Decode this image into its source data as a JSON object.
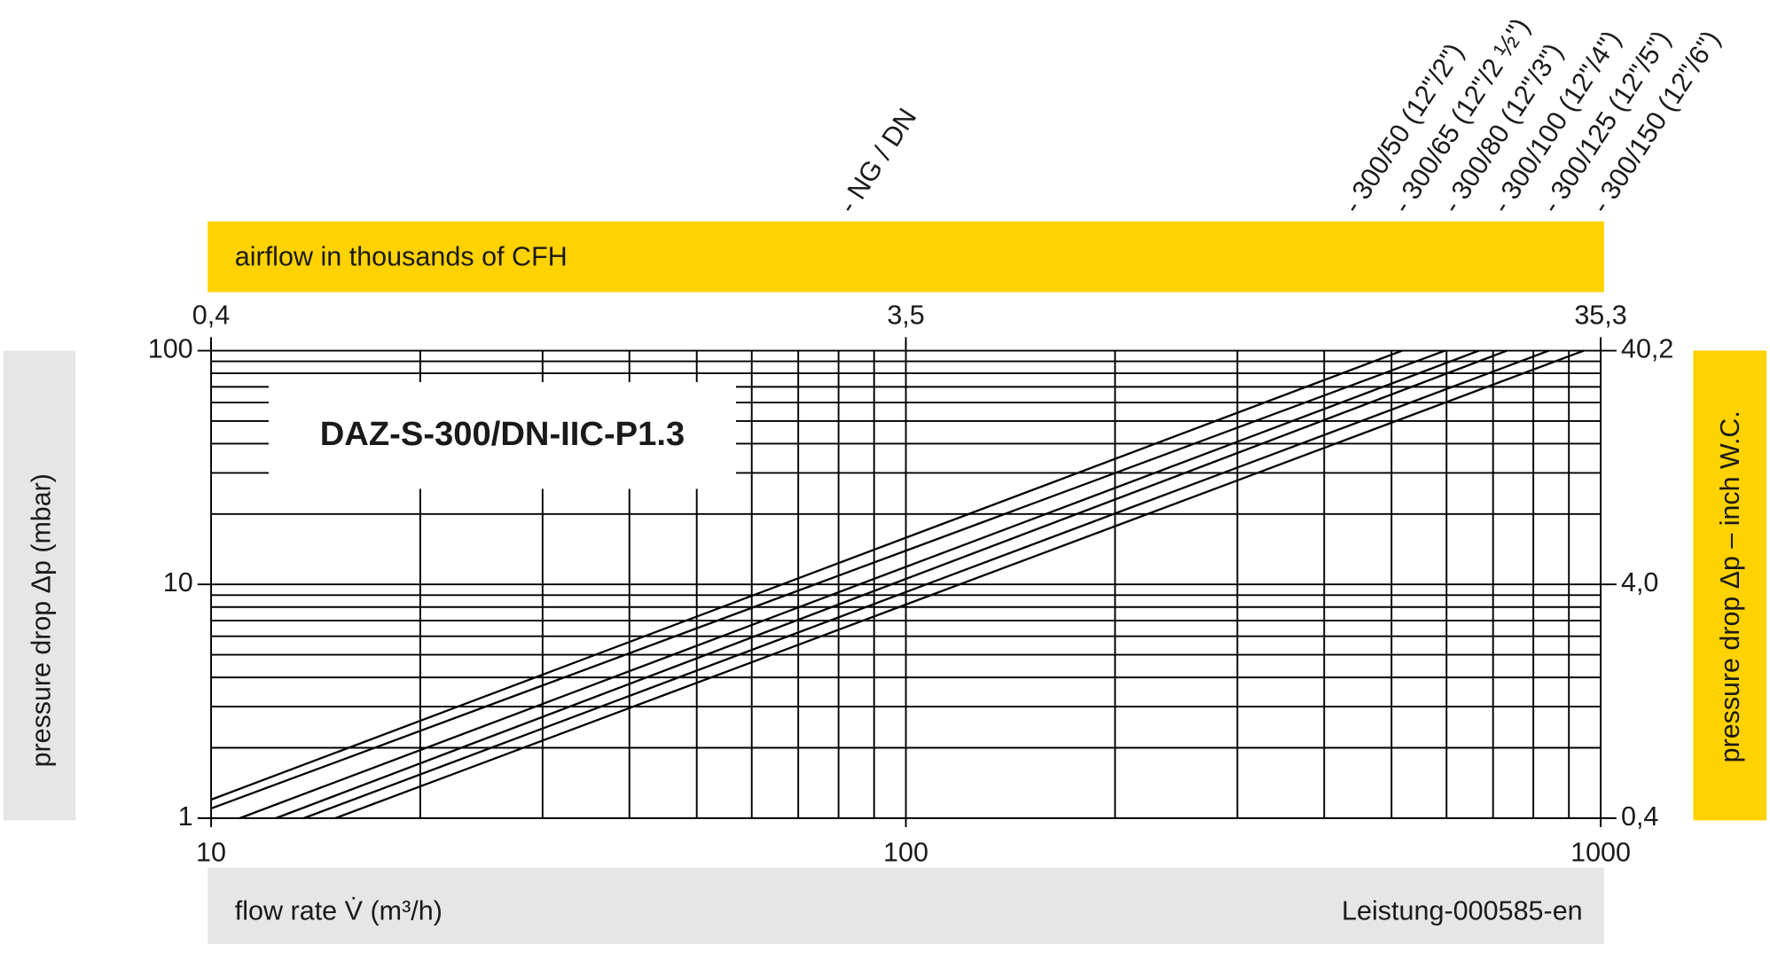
{
  "chart_data": {
    "type": "line",
    "title": "DAZ-S-300/DN-IIC-P1.3",
    "x_label": "flow rate V̇ (m³/h)",
    "x2_label": "airflow in thousands of CFH",
    "y_label": "pressure drop Δp (mbar)",
    "y2_label": "pressure drop Δp – inch W.C.",
    "series_group_label": "- NG / DN",
    "footnote": "Leistung-000585-en",
    "xscale": "log",
    "yscale": "log",
    "xlim": [
      10,
      1000
    ],
    "xticks": [
      10,
      100,
      1000
    ],
    "xgrid": [
      20,
      30,
      40,
      50,
      60,
      70,
      80,
      90,
      200,
      300,
      400,
      500,
      600,
      700,
      800,
      900
    ],
    "ylim": [
      1,
      100
    ],
    "yticks": [
      1,
      10,
      100
    ],
    "ygrid": [
      2,
      3,
      4,
      5,
      6,
      7,
      8,
      9,
      20,
      30,
      40,
      50,
      60,
      70,
      80,
      90
    ],
    "x2lim": [
      0.353,
      35.3
    ],
    "x2ticks": [
      {
        "value": 0.353,
        "label": "0,4"
      },
      {
        "value": 3.53,
        "label": "3,5"
      },
      {
        "value": 35.3,
        "label": "35,3"
      }
    ],
    "y2lim": [
      0.402,
      40.2
    ],
    "y2ticks": [
      {
        "value": 0.402,
        "label": "0,4"
      },
      {
        "value": 4.02,
        "label": "4,0"
      },
      {
        "value": 40.2,
        "label": "40,2"
      }
    ],
    "series": [
      {
        "name": "- 300/50 (12\"/2\")",
        "color": "#000000",
        "x": [
          10,
          518
        ],
        "values": [
          1.2,
          100
        ]
      },
      {
        "name": "- 300/65 (12\"/2 ½\")",
        "color": "#000000",
        "x": [
          10,
          597
        ],
        "values": [
          1.1,
          100
        ]
      },
      {
        "name": "- 300/80 (12\"/3\")",
        "color": "#000000",
        "x": [
          11,
          668
        ],
        "values": [
          1,
          100
        ]
      },
      {
        "name": "- 300/100 (12\"/4\")",
        "color": "#000000",
        "x": [
          12.4,
          733
        ],
        "values": [
          1,
          100
        ]
      },
      {
        "name": "- 300/125 (12\"/5\")",
        "color": "#000000",
        "x": [
          13.6,
          842
        ],
        "values": [
          1,
          100
        ]
      },
      {
        "name": "- 300/150 (12\"/6\")",
        "color": "#000000",
        "x": [
          15.1,
          946
        ],
        "values": [
          1,
          100
        ]
      }
    ]
  }
}
